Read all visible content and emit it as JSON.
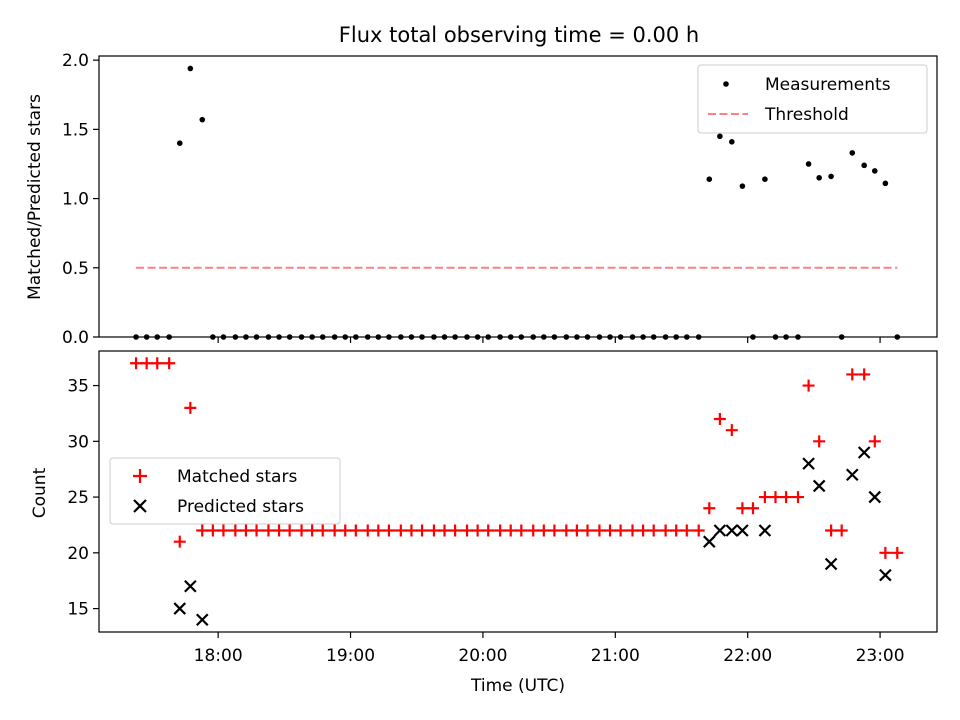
{
  "title": "Flux total observing time = 0.00 h",
  "chart_data": [
    {
      "type": "scatter",
      "ylabel": "Matched/Predicted stars",
      "xlim": [
        17.1,
        23.43
      ],
      "ylim": [
        0,
        2.03
      ],
      "yticks": [
        0.0,
        0.5,
        1.0,
        1.5,
        2.0
      ],
      "ytick_labels": [
        "0.0",
        "0.5",
        "1.0",
        "1.5",
        "2.0"
      ],
      "legend_position": "top-right",
      "series": [
        {
          "name": "Measurements",
          "marker": "dot",
          "color": "#000000",
          "x": [
            17.38,
            17.46,
            17.54,
            17.63,
            17.71,
            17.79,
            17.88,
            17.96,
            18.04,
            18.13,
            18.21,
            18.29,
            18.38,
            18.46,
            18.54,
            18.63,
            18.71,
            18.79,
            18.88,
            18.96,
            19.04,
            19.13,
            19.21,
            19.29,
            19.38,
            19.46,
            19.54,
            19.63,
            19.71,
            19.79,
            19.88,
            19.96,
            20.04,
            20.13,
            20.21,
            20.29,
            20.38,
            20.46,
            20.54,
            20.63,
            20.71,
            20.79,
            20.88,
            20.96,
            21.04,
            21.13,
            21.21,
            21.29,
            21.38,
            21.46,
            21.54,
            21.63,
            21.71,
            21.79,
            21.88,
            21.96,
            22.04,
            22.13,
            22.21,
            22.29,
            22.38,
            22.46,
            22.54,
            22.63,
            22.71,
            22.79,
            22.88,
            22.96,
            23.04,
            23.13
          ],
          "y": [
            0,
            0,
            0,
            0,
            1.4,
            1.94,
            1.57,
            0,
            0,
            0,
            0,
            0,
            0,
            0,
            0,
            0,
            0,
            0,
            0,
            0,
            0,
            0,
            0,
            0,
            0,
            0,
            0,
            0,
            0,
            0,
            0,
            0,
            0,
            0,
            0,
            0,
            0,
            0,
            0,
            0,
            0,
            0,
            0,
            0,
            0,
            0,
            0,
            0,
            0,
            0,
            0,
            0,
            1.14,
            1.45,
            1.41,
            1.09,
            0,
            1.14,
            0,
            0,
            0,
            1.25,
            1.15,
            1.16,
            0,
            1.33,
            1.24,
            1.2,
            1.11,
            0
          ]
        },
        {
          "name": "Threshold",
          "marker": "dashed-line",
          "color": "#ff8080",
          "x": [
            17.38,
            23.13
          ],
          "y": [
            0.5,
            0.5
          ]
        }
      ]
    },
    {
      "type": "scatter",
      "xlabel": "Time (UTC)",
      "ylabel": "Count",
      "xlim": [
        17.1,
        23.43
      ],
      "ylim": [
        12.9,
        38.1
      ],
      "xticks": [
        18,
        19,
        20,
        21,
        22,
        23
      ],
      "xtick_labels": [
        "18:00",
        "19:00",
        "20:00",
        "21:00",
        "22:00",
        "23:00"
      ],
      "yticks": [
        15,
        20,
        25,
        30,
        35
      ],
      "ytick_labels": [
        "15",
        "20",
        "25",
        "30",
        "35"
      ],
      "legend_position": "center-left",
      "series": [
        {
          "name": "Matched stars",
          "marker": "plus",
          "color": "#ff0000",
          "x": [
            17.38,
            17.46,
            17.54,
            17.63,
            17.71,
            17.79,
            17.88,
            17.96,
            18.04,
            18.13,
            18.21,
            18.29,
            18.38,
            18.46,
            18.54,
            18.63,
            18.71,
            18.79,
            18.88,
            18.96,
            19.04,
            19.13,
            19.21,
            19.29,
            19.38,
            19.46,
            19.54,
            19.63,
            19.71,
            19.79,
            19.88,
            19.96,
            20.04,
            20.13,
            20.21,
            20.29,
            20.38,
            20.46,
            20.54,
            20.63,
            20.71,
            20.79,
            20.88,
            20.96,
            21.04,
            21.13,
            21.21,
            21.29,
            21.38,
            21.46,
            21.54,
            21.63,
            21.71,
            21.79,
            21.88,
            21.96,
            22.04,
            22.13,
            22.21,
            22.29,
            22.38,
            22.46,
            22.54,
            22.63,
            22.71,
            22.79,
            22.88,
            22.96,
            23.04,
            23.13
          ],
          "y": [
            37,
            37,
            37,
            37,
            21,
            33,
            22,
            22,
            22,
            22,
            22,
            22,
            22,
            22,
            22,
            22,
            22,
            22,
            22,
            22,
            22,
            22,
            22,
            22,
            22,
            22,
            22,
            22,
            22,
            22,
            22,
            22,
            22,
            22,
            22,
            22,
            22,
            22,
            22,
            22,
            22,
            22,
            22,
            22,
            22,
            22,
            22,
            22,
            22,
            22,
            22,
            22,
            24,
            32,
            31,
            24,
            24,
            25,
            25,
            25,
            25,
            35,
            30,
            22,
            22,
            36,
            36,
            30,
            20,
            20
          ]
        },
        {
          "name": "Predicted stars",
          "marker": "x",
          "color": "#000000",
          "x": [
            17.71,
            17.79,
            17.88,
            21.71,
            21.79,
            21.88,
            21.96,
            22.13,
            22.46,
            22.54,
            22.63,
            22.79,
            22.88,
            22.96,
            23.04
          ],
          "y": [
            15,
            17,
            14,
            21,
            22,
            22,
            22,
            22,
            28,
            26,
            19,
            27,
            29,
            25,
            18
          ]
        }
      ]
    }
  ]
}
